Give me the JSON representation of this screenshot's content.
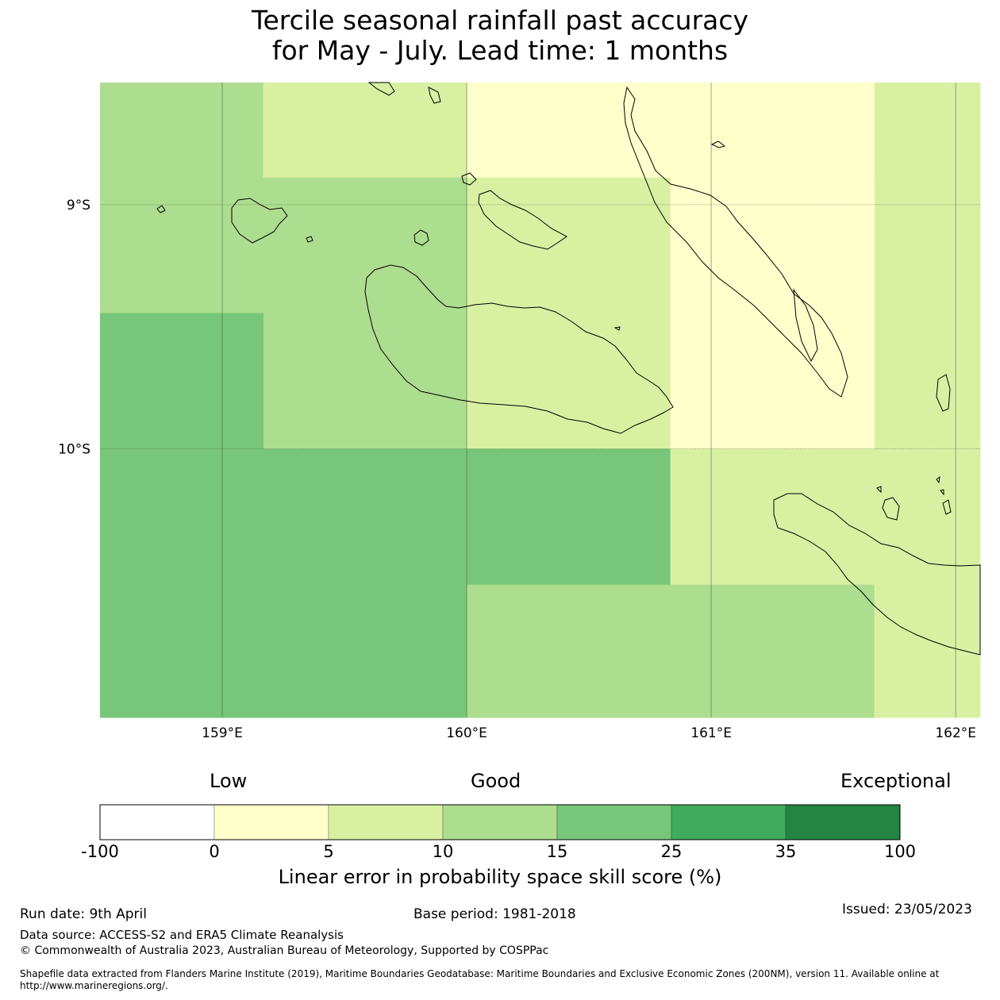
{
  "title_line1": "Tercile seasonal rainfall past accuracy",
  "title_line2": "for May - July. Lead time: 1 months",
  "map": {
    "lon_range": [
      158.5,
      162.1
    ],
    "lat_range": [
      -11.1,
      -8.5
    ],
    "lon_ticks": [
      {
        "value": 159,
        "label": "159°E"
      },
      {
        "value": 160,
        "label": "160°E"
      },
      {
        "value": 161,
        "label": "161°E"
      },
      {
        "value": 162,
        "label": "162°E"
      }
    ],
    "lat_ticks": [
      {
        "value": -9,
        "label": "9°S"
      },
      {
        "value": -10,
        "label": "10°S"
      }
    ],
    "cells": [
      {
        "lon": [
          158.5,
          159.167
        ],
        "lat": [
          -9.444,
          -8.5
        ],
        "bin": 3
      },
      {
        "lon": [
          159.167,
          160.0
        ],
        "lat": [
          -8.889,
          -8.5
        ],
        "bin": 2
      },
      {
        "lon": [
          160.0,
          161.667
        ],
        "lat": [
          -8.889,
          -8.5
        ],
        "bin": 1
      },
      {
        "lon": [
          161.667,
          162.1
        ],
        "lat": [
          -10.0,
          -8.5
        ],
        "bin": 2
      },
      {
        "lon": [
          159.167,
          160.0
        ],
        "lat": [
          -10.0,
          -8.889
        ],
        "bin": 3
      },
      {
        "lon": [
          160.0,
          160.833
        ],
        "lat": [
          -10.0,
          -8.889
        ],
        "bin": 2
      },
      {
        "lon": [
          160.833,
          161.667
        ],
        "lat": [
          -10.0,
          -8.889
        ],
        "bin": 1
      },
      {
        "lon": [
          158.5,
          159.167
        ],
        "lat": [
          -11.1,
          -9.444
        ],
        "bin": 4
      },
      {
        "lon": [
          159.167,
          160.0
        ],
        "lat": [
          -11.1,
          -10.0
        ],
        "bin": 4
      },
      {
        "lon": [
          160.0,
          160.833
        ],
        "lat": [
          -10.556,
          -10.0
        ],
        "bin": 4
      },
      {
        "lon": [
          160.833,
          162.1
        ],
        "lat": [
          -10.556,
          -10.0
        ],
        "bin": 2
      },
      {
        "lon": [
          160.0,
          161.667
        ],
        "lat": [
          -11.1,
          -10.556
        ],
        "bin": 3
      },
      {
        "lon": [
          161.667,
          162.1
        ],
        "lat": [
          -11.1,
          -10.556
        ],
        "bin": 2
      }
    ]
  },
  "colorbar": {
    "categories": {
      "low": "Low",
      "good": "Good",
      "exceptional": "Exceptional"
    },
    "labels": [
      "-100",
      "0",
      "5",
      "10",
      "15",
      "25",
      "35",
      "100"
    ],
    "colors": [
      "#ffffff",
      "#ffffcc",
      "#d9f0a3",
      "#addd8e",
      "#78c679",
      "#41ab5d",
      "#238443"
    ],
    "title": "Linear error in probability space skill score (%)"
  },
  "footer": {
    "run_date": "Run date: 9th April",
    "base_period": "Base period: 1981-2018",
    "issued": "Issued: 23/05/2023",
    "data_source": "Data source: ACCESS-S2 and ERA5 Climate Reanalysis",
    "copyright": "© Commonwealth of Australia 2023, Australian Bureau of Meteorology, Supported by COSPPac",
    "shapefile": "Shapefile data extracted from Flanders Marine Institute (2019), Maritime Boundaries Geodatabase: Maritime Boundaries and Exclusive Economic Zones (200NM), version 11. Available online at http://www.marineregions.org/."
  }
}
